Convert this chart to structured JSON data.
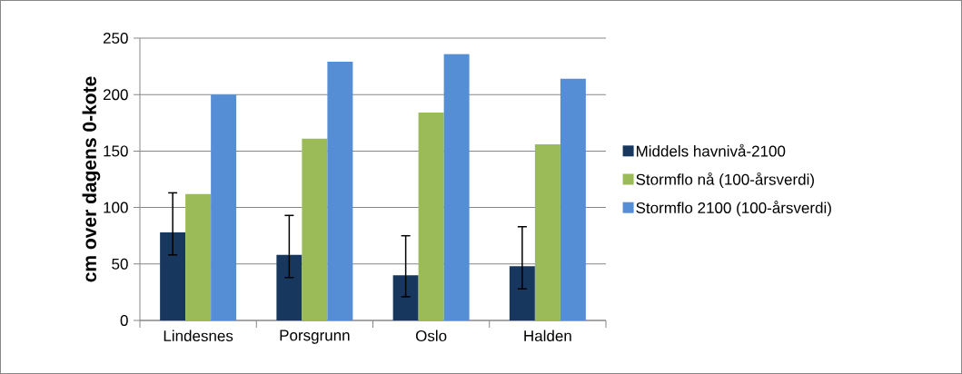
{
  "chart_data": {
    "type": "bar",
    "ylabel": "cm over dagens 0-kote",
    "categories": [
      "Lindesnes",
      "Porsgrunn",
      "Oslo",
      "Halden"
    ],
    "series": [
      {
        "name": "Middels havnivå-2100",
        "color": "#17375e",
        "values": [
          78,
          58,
          40,
          48
        ],
        "errors": [
          [
            58,
            113
          ],
          [
            38,
            93
          ],
          [
            21,
            75
          ],
          [
            28,
            83
          ]
        ]
      },
      {
        "name": "Stormflo nå (100-årsverdi)",
        "color": "#9bbb59",
        "values": [
          112,
          161,
          184,
          156
        ]
      },
      {
        "name": "Stormflo 2100 (100-årsverdi)",
        "color": "#558ed5",
        "values": [
          200,
          229,
          236,
          214
        ]
      }
    ],
    "ylim": [
      0,
      250
    ],
    "yticks": [
      0,
      50,
      100,
      150,
      200,
      250
    ],
    "grid": "y",
    "legend": "right"
  }
}
